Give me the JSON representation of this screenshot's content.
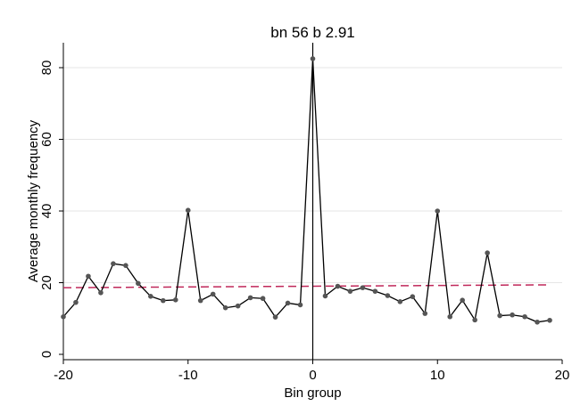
{
  "chart_data": {
    "type": "line",
    "title": "bn 56 b 2.91",
    "xlabel": "Bin group",
    "ylabel": "Average monthly frequency",
    "xlim": [
      -20,
      20
    ],
    "ylim": [
      0,
      85
    ],
    "xticks": [
      -20,
      -10,
      0,
      10,
      20
    ],
    "yticks": [
      0,
      20,
      40,
      60,
      80
    ],
    "grid": "horizontal",
    "reference_line_x": 0,
    "colors": {
      "series": "#000000",
      "markers": "#555555",
      "fit": "#c0285a",
      "grid": "#e6e6e6"
    },
    "series": [
      {
        "x": [
          -20,
          -19,
          -18,
          -17,
          -16,
          -15,
          -14,
          -13,
          -12,
          -11,
          -10,
          -9,
          -8,
          -7,
          -6,
          -5,
          -4,
          -3,
          -2,
          -1,
          0,
          1,
          2,
          3,
          4,
          5,
          6,
          7,
          8,
          9,
          10,
          11,
          12,
          13,
          14,
          15,
          16,
          17,
          18,
          19
        ],
        "values": [
          10.5,
          14.5,
          21.8,
          17.2,
          25.3,
          24.8,
          19.8,
          16.2,
          15.0,
          15.2,
          40.2,
          15.0,
          16.8,
          13.0,
          13.5,
          15.8,
          15.6,
          10.4,
          14.3,
          13.8,
          82.5,
          16.3,
          19.0,
          17.6,
          18.6,
          17.6,
          16.4,
          14.7,
          16.1,
          11.4,
          40.0,
          10.5,
          15.1,
          9.6,
          28.3,
          10.8,
          11.0,
          10.5,
          9.0,
          9.5
        ]
      }
    ],
    "fit_line": {
      "x": [
        -20,
        19
      ],
      "y": [
        18.6,
        19.4
      ],
      "style": "dashed"
    }
  }
}
